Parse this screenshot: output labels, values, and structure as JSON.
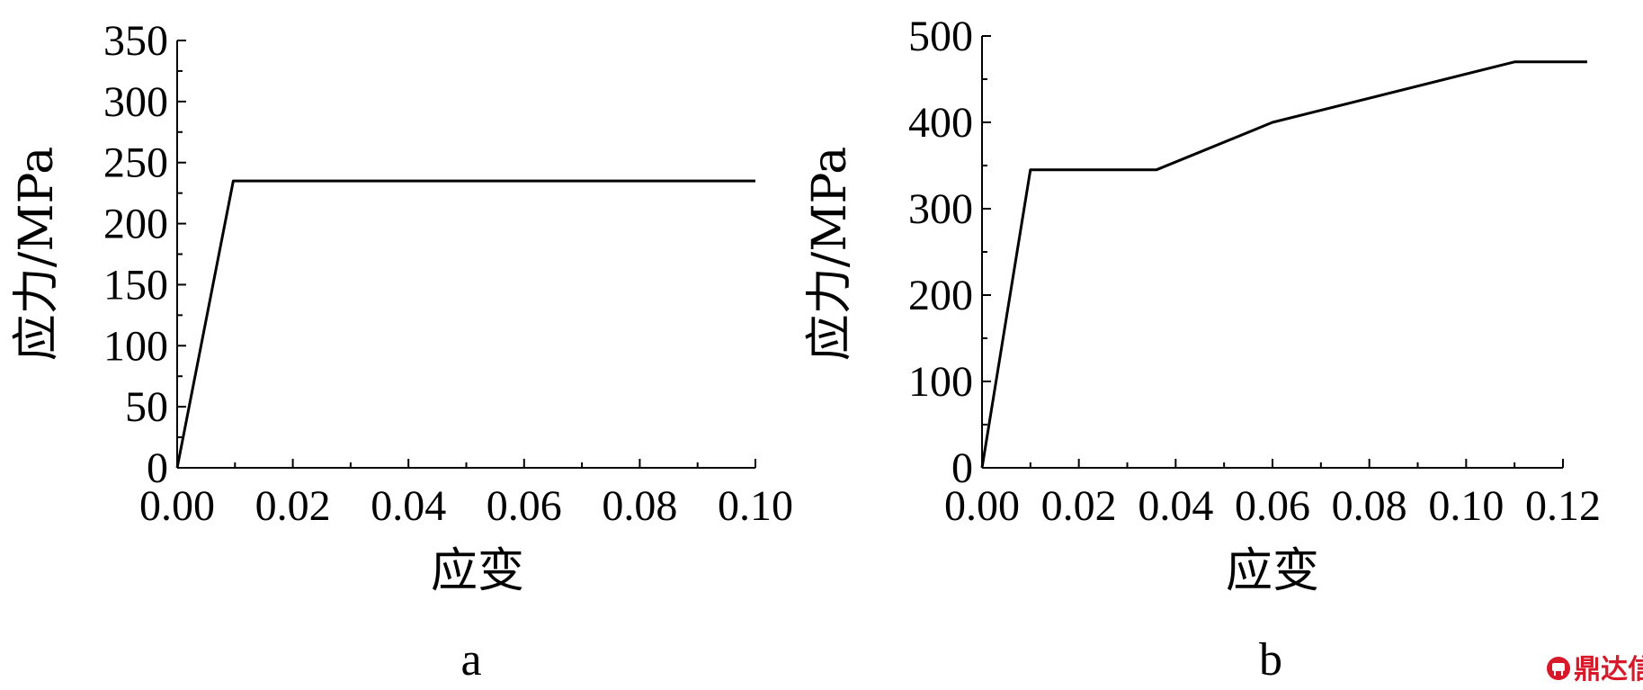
{
  "chart_data": [
    {
      "type": "line",
      "panel_label": "a",
      "xlabel": "应变",
      "ylabel": "应力/MPa",
      "xlim": [
        0,
        0.1
      ],
      "ylim": [
        0,
        350
      ],
      "x_ticks": [
        "0.00",
        "0.02",
        "0.04",
        "0.06",
        "0.08",
        "0.10"
      ],
      "y_ticks": [
        "0",
        "50",
        "100",
        "150",
        "200",
        "250",
        "300",
        "350"
      ],
      "grid": false,
      "series": [
        {
          "x": [
            0,
            0.0097,
            0.1
          ],
          "y": [
            0,
            235,
            235
          ]
        }
      ]
    },
    {
      "type": "line",
      "panel_label": "b",
      "xlabel": "应变",
      "ylabel": "应力/MPa",
      "xlim": [
        0,
        0.12
      ],
      "ylim": [
        0,
        500
      ],
      "x_ticks": [
        "0.00",
        "0.02",
        "0.04",
        "0.06",
        "0.08",
        "0.10",
        "0.12"
      ],
      "y_ticks": [
        "0",
        "100",
        "200",
        "300",
        "400",
        "500"
      ],
      "grid": false,
      "series": [
        {
          "x": [
            0,
            0.01,
            0.036,
            0.06,
            0.11,
            0.125
          ],
          "y": [
            0,
            345,
            345,
            400,
            470,
            470
          ]
        }
      ]
    }
  ],
  "watermark": {
    "text": "鼎达信",
    "color": "#d7192a"
  }
}
